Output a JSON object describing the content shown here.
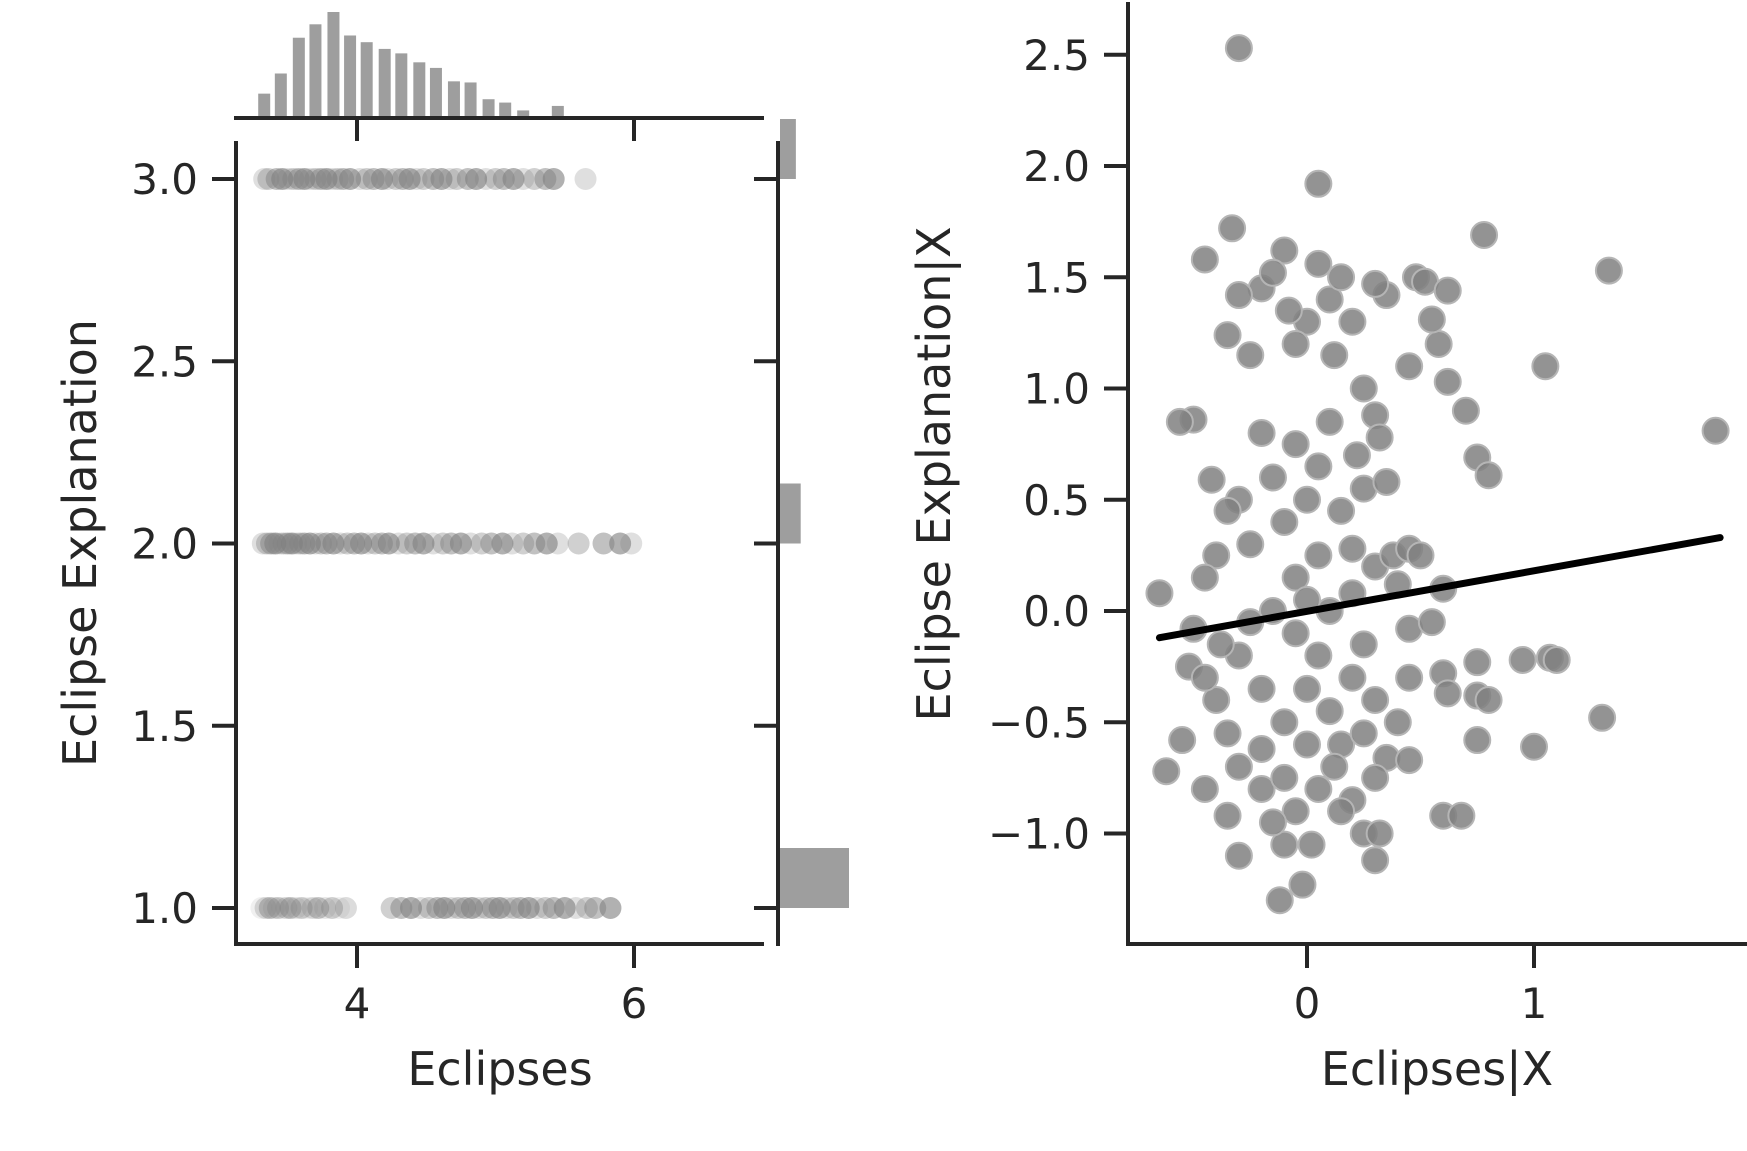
{
  "chart_data": [
    {
      "type": "scatter",
      "panel": "joint plot with marginal histograms",
      "xlabel": "Eclipses",
      "ylabel": "Eclipse Explanation",
      "xlim": [
        3.2,
        6.9
      ],
      "ylim": [
        0.9,
        3.1
      ],
      "xticks": [
        4,
        6
      ],
      "xtick_labels": [
        "4",
        "6"
      ],
      "yticks": [
        1.0,
        1.5,
        2.0,
        2.5,
        3.0
      ],
      "ytick_labels": [
        "1.0",
        "1.5",
        "2.0",
        "2.5",
        "3.0"
      ],
      "grid": false,
      "point_color": "#808080",
      "series": [
        {
          "y": 3.0,
          "x": [
            3.33,
            3.36,
            3.42,
            3.46,
            3.5,
            3.54,
            3.58,
            3.62,
            3.66,
            3.7,
            3.74,
            3.78,
            3.82,
            3.86,
            3.9,
            3.95,
            4.02,
            4.07,
            4.12,
            4.18,
            4.22,
            4.28,
            4.33,
            4.38,
            4.43,
            4.48,
            4.55,
            4.61,
            4.67,
            4.72,
            4.8,
            4.86,
            4.93,
            5.0,
            5.06,
            5.13,
            5.2,
            5.28,
            5.36,
            5.42,
            5.65
          ]
        },
        {
          "y": 2.0,
          "x": [
            3.32,
            3.35,
            3.38,
            3.41,
            3.44,
            3.47,
            3.5,
            3.53,
            3.56,
            3.59,
            3.62,
            3.66,
            3.7,
            3.74,
            3.78,
            3.83,
            3.88,
            3.93,
            3.98,
            4.03,
            4.08,
            4.13,
            4.18,
            4.23,
            4.3,
            4.36,
            4.42,
            4.48,
            4.55,
            4.62,
            4.68,
            4.75,
            4.82,
            4.9,
            4.97,
            5.05,
            5.12,
            5.2,
            5.28,
            5.37,
            5.45,
            5.6,
            5.78,
            5.9,
            5.98
          ]
        },
        {
          "y": 1.0,
          "x": [
            3.31,
            3.34,
            3.37,
            3.4,
            3.43,
            3.46,
            3.49,
            3.52,
            3.56,
            3.6,
            3.64,
            3.68,
            3.72,
            3.77,
            3.82,
            3.87,
            3.92,
            4.25,
            4.32,
            4.39,
            4.46,
            4.52,
            4.58,
            4.63,
            4.68,
            4.73,
            4.78,
            4.83,
            4.88,
            4.93,
            4.98,
            5.03,
            5.08,
            5.13,
            5.18,
            5.24,
            5.3,
            5.36,
            5.42,
            5.5,
            5.58,
            5.66,
            5.72,
            5.83
          ]
        }
      ]
    },
    {
      "type": "bar",
      "panel": "top marginal histogram of Eclipses",
      "x_centers": [
        3.33,
        3.45,
        3.58,
        3.7,
        3.83,
        3.95,
        4.07,
        4.2,
        4.32,
        4.45,
        4.57,
        4.7,
        4.82,
        4.95,
        5.07,
        5.2,
        5.32,
        5.45
      ],
      "values": [
        20,
        38,
        70,
        82,
        93,
        72,
        66,
        60,
        56,
        48,
        43,
        31,
        30,
        15,
        12,
        5,
        0,
        9
      ],
      "bar_color": "#9e9e9e"
    },
    {
      "type": "bar",
      "panel": "right marginal histogram of Eclipse Explanation",
      "orientation": "horizontal",
      "categories": [
        "3.0",
        "2.0",
        "1.0"
      ],
      "values": [
        23,
        30,
        100
      ],
      "bar_color": "#9e9e9e"
    },
    {
      "type": "scatter",
      "panel": "partial regression plot",
      "xlabel": "Eclipses|X",
      "ylabel": "Eclipse Explanation|X",
      "xlim": [
        -0.78,
        1.92
      ],
      "ylim": [
        -1.5,
        2.72
      ],
      "xticks": [
        0,
        1
      ],
      "xtick_labels": [
        "0",
        "1"
      ],
      "yticks": [
        -1.0,
        -0.5,
        0.0,
        0.5,
        1.0,
        1.5,
        2.0,
        2.5
      ],
      "ytick_labels": [
        "−1.0",
        "−0.5",
        "0.0",
        "0.5",
        "1.0",
        "1.5",
        "2.0",
        "2.5"
      ],
      "grid": false,
      "point_color": "#808080",
      "line_color": "#000000",
      "fit_line": {
        "x": [
          -0.65,
          1.82
        ],
        "y": [
          -0.12,
          0.33
        ]
      },
      "points": [
        [
          -0.3,
          2.53
        ],
        [
          0.05,
          1.92
        ],
        [
          -0.33,
          1.72
        ],
        [
          -0.45,
          1.58
        ],
        [
          0.78,
          1.69
        ],
        [
          1.33,
          1.53
        ],
        [
          1.05,
          1.1
        ],
        [
          1.8,
          0.81
        ],
        [
          -0.65,
          0.08
        ],
        [
          -0.5,
          0.86
        ],
        [
          -0.56,
          0.85
        ],
        [
          -0.42,
          0.59
        ],
        [
          0.7,
          0.9
        ],
        [
          0.75,
          0.69
        ],
        [
          0.8,
          0.61
        ],
        [
          0.62,
          1.03
        ],
        [
          0.58,
          1.2
        ],
        [
          0.55,
          1.31
        ],
        [
          0.48,
          1.5
        ],
        [
          0.52,
          1.48
        ],
        [
          0.62,
          1.44
        ],
        [
          0.45,
          1.1
        ],
        [
          0.35,
          1.42
        ],
        [
          0.3,
          1.47
        ],
        [
          -0.2,
          1.45
        ],
        [
          -0.3,
          1.42
        ],
        [
          -0.35,
          1.24
        ],
        [
          -0.1,
          1.62
        ],
        [
          -0.15,
          1.52
        ],
        [
          0.05,
          1.56
        ],
        [
          0.0,
          1.3
        ],
        [
          0.1,
          1.4
        ],
        [
          -0.05,
          1.2
        ],
        [
          0.12,
          1.15
        ],
        [
          -0.25,
          1.15
        ],
        [
          0.2,
          1.3
        ],
        [
          0.15,
          1.5
        ],
        [
          -0.08,
          1.35
        ],
        [
          0.25,
          1.0
        ],
        [
          0.3,
          0.88
        ],
        [
          0.32,
          0.78
        ],
        [
          0.22,
          0.7
        ],
        [
          -0.05,
          0.75
        ],
        [
          0.05,
          0.65
        ],
        [
          -0.15,
          0.6
        ],
        [
          -0.2,
          0.8
        ],
        [
          0.1,
          0.85
        ],
        [
          0.0,
          0.5
        ],
        [
          -0.1,
          0.4
        ],
        [
          0.15,
          0.45
        ],
        [
          0.25,
          0.55
        ],
        [
          0.35,
          0.58
        ],
        [
          -0.3,
          0.5
        ],
        [
          -0.35,
          0.45
        ],
        [
          -0.25,
          0.3
        ],
        [
          -0.4,
          0.25
        ],
        [
          -0.45,
          0.15
        ],
        [
          0.05,
          0.25
        ],
        [
          -0.05,
          0.15
        ],
        [
          0.2,
          0.28
        ],
        [
          0.3,
          0.2
        ],
        [
          0.38,
          0.25
        ],
        [
          0.45,
          0.28
        ],
        [
          0.5,
          0.25
        ],
        [
          0.4,
          0.12
        ],
        [
          0.45,
          -0.08
        ],
        [
          0.6,
          0.1
        ],
        [
          0.55,
          -0.05
        ],
        [
          -0.5,
          -0.08
        ],
        [
          -0.52,
          -0.25
        ],
        [
          -0.55,
          -0.58
        ],
        [
          -0.62,
          -0.72
        ],
        [
          -0.45,
          -0.8
        ],
        [
          -0.35,
          -0.92
        ],
        [
          -0.3,
          -1.1
        ],
        [
          -0.1,
          -1.05
        ],
        [
          -0.12,
          -1.3
        ],
        [
          -0.02,
          -1.23
        ],
        [
          0.02,
          -1.05
        ],
        [
          0.25,
          -1.0
        ],
        [
          0.3,
          -1.12
        ],
        [
          0.32,
          -1.0
        ],
        [
          0.6,
          -0.92
        ],
        [
          0.68,
          -0.92
        ],
        [
          0.6,
          -0.28
        ],
        [
          0.62,
          -0.37
        ],
        [
          0.75,
          -0.23
        ],
        [
          0.75,
          -0.38
        ],
        [
          0.8,
          -0.4
        ],
        [
          0.95,
          -0.22
        ],
        [
          1.07,
          -0.21
        ],
        [
          1.1,
          -0.22
        ],
        [
          1.0,
          -0.61
        ],
        [
          1.3,
          -0.48
        ],
        [
          0.75,
          -0.58
        ],
        [
          0.45,
          -0.3
        ],
        [
          0.4,
          -0.5
        ],
        [
          0.35,
          -0.66
        ],
        [
          0.45,
          -0.67
        ],
        [
          0.3,
          -0.75
        ],
        [
          0.2,
          -0.85
        ],
        [
          0.15,
          -0.9
        ],
        [
          0.05,
          -0.8
        ],
        [
          -0.05,
          -0.9
        ],
        [
          -0.15,
          -0.95
        ],
        [
          -0.2,
          -0.8
        ],
        [
          -0.3,
          -0.7
        ],
        [
          -0.35,
          -0.55
        ],
        [
          -0.4,
          -0.4
        ],
        [
          -0.45,
          -0.3
        ],
        [
          -0.3,
          -0.2
        ],
        [
          -0.2,
          -0.35
        ],
        [
          -0.1,
          -0.5
        ],
        [
          0.0,
          -0.6
        ],
        [
          0.1,
          -0.45
        ],
        [
          0.2,
          -0.3
        ],
        [
          0.25,
          -0.15
        ],
        [
          0.3,
          -0.4
        ],
        [
          0.15,
          -0.6
        ],
        [
          0.05,
          -0.2
        ],
        [
          -0.05,
          -0.1
        ],
        [
          -0.15,
          0.0
        ],
        [
          0.1,
          0.0
        ],
        [
          0.2,
          0.08
        ],
        [
          -0.25,
          -0.05
        ],
        [
          0.0,
          -0.35
        ],
        [
          -0.1,
          -0.75
        ],
        [
          0.12,
          -0.7
        ],
        [
          -0.2,
          -0.62
        ],
        [
          0.25,
          -0.55
        ],
        [
          -0.38,
          -0.15
        ],
        [
          0.0,
          0.05
        ]
      ]
    }
  ]
}
